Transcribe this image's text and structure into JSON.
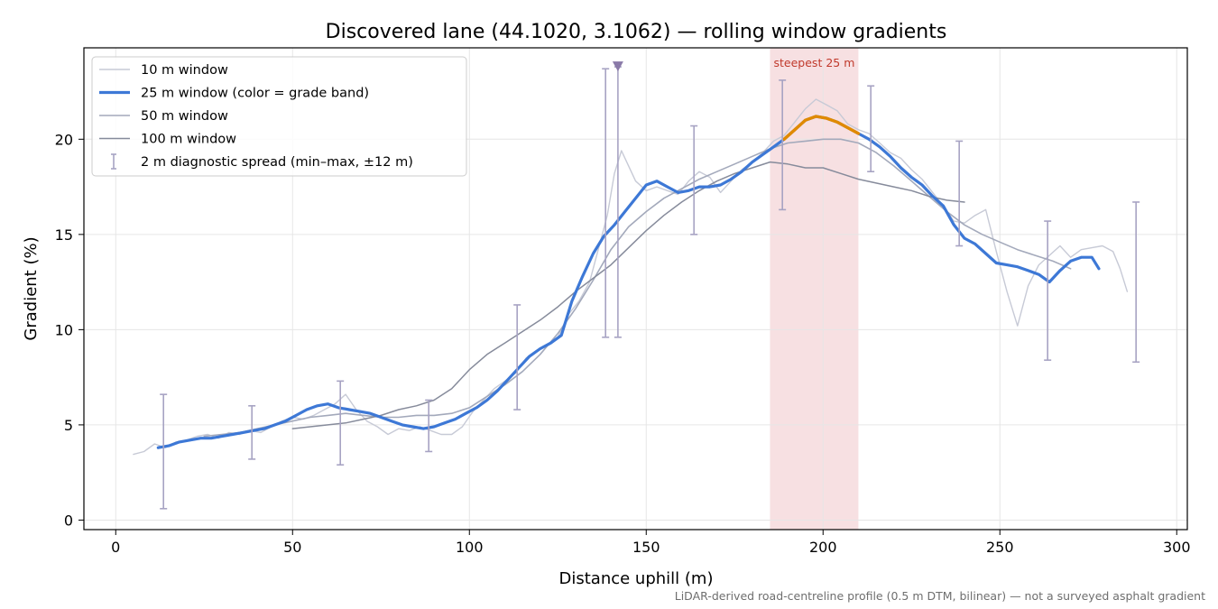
{
  "chart_data": {
    "type": "line",
    "title": "Discovered lane (44.1020, 3.1062) — rolling window gradients",
    "xlabel": "Distance uphill (m)",
    "ylabel": "Gradient (%)",
    "xlim": [
      -9,
      303
    ],
    "ylim": [
      -0.5,
      24.8
    ],
    "xticks": [
      0,
      50,
      100,
      150,
      200,
      250,
      300
    ],
    "yticks": [
      0,
      5,
      10,
      15,
      20
    ],
    "grid": true,
    "legend_position": "upper left",
    "footnote": "LiDAR-derived road-centreline profile (0.5 m DTM, bilinear) — not a surveyed asphalt gradient",
    "highlight": {
      "label": "steepest 25 m",
      "x_range": [
        185,
        210
      ],
      "color": "#e8a5ab"
    },
    "marker": {
      "x": 142,
      "y": 23.8,
      "shape": "down-triangle",
      "color": "#8a7aa8"
    },
    "series": [
      {
        "name": "10 m window",
        "color": "#c7cad6",
        "x": [
          5,
          8,
          11,
          14,
          17,
          20,
          23,
          26,
          29,
          32,
          35,
          38,
          41,
          44,
          47,
          50,
          53,
          56,
          59,
          62,
          65,
          68,
          71,
          74,
          77,
          80,
          83,
          86,
          89,
          92,
          95,
          98,
          101,
          104,
          107,
          110,
          113,
          116,
          119,
          122,
          125,
          128,
          131,
          134,
          137,
          139,
          141,
          143,
          145,
          147,
          150,
          153,
          156,
          159,
          162,
          165,
          168,
          171,
          174,
          177,
          180,
          183,
          186,
          189,
          192,
          195,
          198,
          201,
          204,
          207,
          210,
          213,
          216,
          219,
          222,
          225,
          228,
          231,
          234,
          237,
          240,
          243,
          246,
          249,
          252,
          255,
          258,
          261,
          264,
          267,
          270,
          273,
          276,
          279,
          282,
          284,
          286
        ],
        "y": [
          3.45,
          3.6,
          4.0,
          3.8,
          4.1,
          4.2,
          4.4,
          4.5,
          4.3,
          4.6,
          4.5,
          4.7,
          4.6,
          4.9,
          5.2,
          5.4,
          5.3,
          5.5,
          5.8,
          6.1,
          6.6,
          5.8,
          5.2,
          4.9,
          4.5,
          4.8,
          4.7,
          4.9,
          4.7,
          4.5,
          4.5,
          4.9,
          5.7,
          6.3,
          6.9,
          7.3,
          7.7,
          8.5,
          8.9,
          9.2,
          9.6,
          10.8,
          11.5,
          12.5,
          14.6,
          16.0,
          18.2,
          19.4,
          18.6,
          17.8,
          17.3,
          17.5,
          17.3,
          17.1,
          17.8,
          18.3,
          18.0,
          17.2,
          17.8,
          18.4,
          18.8,
          19.3,
          19.9,
          20.2,
          20.9,
          21.6,
          22.1,
          21.8,
          21.5,
          20.8,
          20.5,
          20.3,
          19.8,
          19.3,
          19.0,
          18.4,
          17.9,
          17.2,
          16.5,
          15.7,
          15.6,
          16.0,
          16.3,
          14.1,
          12.0,
          10.2,
          12.3,
          13.4,
          13.9,
          14.4,
          13.8,
          14.2,
          14.3,
          14.4,
          14.1,
          13.2,
          12.0
        ]
      },
      {
        "name": "25 m window (color = grade band)",
        "color": "#3d78d6",
        "band_color": "#e08a00",
        "band_x_range": [
          189,
          211
        ],
        "x": [
          12,
          15,
          18,
          21,
          24,
          27,
          30,
          33,
          36,
          39,
          42,
          45,
          48,
          51,
          54,
          57,
          60,
          63,
          66,
          69,
          72,
          75,
          78,
          81,
          84,
          87,
          90,
          93,
          96,
          99,
          102,
          105,
          108,
          111,
          114,
          117,
          120,
          123,
          126,
          129,
          132,
          135,
          138,
          141,
          144,
          147,
          150,
          153,
          156,
          159,
          162,
          165,
          168,
          171,
          174,
          177,
          180,
          183,
          186,
          189,
          192,
          195,
          198,
          201,
          204,
          207,
          210,
          213,
          216,
          219,
          222,
          225,
          228,
          231,
          234,
          237,
          240,
          243,
          246,
          249,
          252,
          255,
          258,
          261,
          264,
          267,
          270,
          273,
          276,
          278
        ],
        "y": [
          3.8,
          3.9,
          4.1,
          4.2,
          4.3,
          4.3,
          4.4,
          4.5,
          4.6,
          4.7,
          4.8,
          5.0,
          5.2,
          5.5,
          5.8,
          6.0,
          6.1,
          5.9,
          5.8,
          5.7,
          5.6,
          5.4,
          5.2,
          5.0,
          4.9,
          4.8,
          4.9,
          5.1,
          5.3,
          5.6,
          5.9,
          6.3,
          6.8,
          7.4,
          8.0,
          8.6,
          9.0,
          9.3,
          9.7,
          11.5,
          12.8,
          14.0,
          14.9,
          15.5,
          16.2,
          16.9,
          17.6,
          17.8,
          17.5,
          17.2,
          17.3,
          17.5,
          17.5,
          17.6,
          17.9,
          18.3,
          18.8,
          19.2,
          19.6,
          20.0,
          20.5,
          21.0,
          21.2,
          21.1,
          20.9,
          20.6,
          20.3,
          20.0,
          19.6,
          19.1,
          18.5,
          18.0,
          17.6,
          17.0,
          16.5,
          15.5,
          14.8,
          14.5,
          14.0,
          13.5,
          13.4,
          13.3,
          13.1,
          12.9,
          12.5,
          13.1,
          13.6,
          13.8,
          13.8,
          13.2
        ]
      },
      {
        "name": "50 m window",
        "color": "#a3a9bb",
        "x": [
          25,
          30,
          35,
          40,
          45,
          50,
          55,
          60,
          65,
          70,
          75,
          80,
          85,
          90,
          95,
          100,
          105,
          110,
          115,
          120,
          125,
          130,
          135,
          140,
          145,
          150,
          155,
          160,
          165,
          170,
          175,
          180,
          185,
          190,
          195,
          200,
          205,
          210,
          215,
          220,
          225,
          230,
          235,
          240,
          245,
          250,
          255,
          260,
          265,
          270
        ],
        "y": [
          4.4,
          4.5,
          4.6,
          4.8,
          5.0,
          5.2,
          5.4,
          5.5,
          5.6,
          5.5,
          5.4,
          5.4,
          5.5,
          5.5,
          5.6,
          5.9,
          6.5,
          7.1,
          7.8,
          8.7,
          9.8,
          11.1,
          12.6,
          14.2,
          15.4,
          16.2,
          16.9,
          17.4,
          17.9,
          18.3,
          18.7,
          19.1,
          19.5,
          19.8,
          19.9,
          20.0,
          20.0,
          19.8,
          19.3,
          18.6,
          17.8,
          17.0,
          16.2,
          15.5,
          15.0,
          14.6,
          14.2,
          13.9,
          13.6,
          13.2
        ]
      },
      {
        "name": "100 m window",
        "color": "#868b9b",
        "x": [
          50,
          55,
          60,
          65,
          70,
          75,
          80,
          85,
          90,
          95,
          100,
          105,
          110,
          115,
          120,
          125,
          130,
          135,
          140,
          145,
          150,
          155,
          160,
          165,
          170,
          175,
          180,
          185,
          190,
          195,
          200,
          205,
          210,
          215,
          220,
          225,
          230,
          235,
          240
        ],
        "y": [
          4.8,
          4.9,
          5.0,
          5.1,
          5.3,
          5.5,
          5.8,
          6.0,
          6.3,
          6.9,
          7.9,
          8.7,
          9.3,
          9.9,
          10.5,
          11.2,
          12.0,
          12.7,
          13.4,
          14.3,
          15.2,
          16.0,
          16.7,
          17.3,
          17.8,
          18.2,
          18.5,
          18.8,
          18.7,
          18.5,
          18.5,
          18.2,
          17.9,
          17.7,
          17.5,
          17.3,
          17.0,
          16.8,
          16.7
        ]
      }
    ],
    "errorbars": {
      "name": "2 m diagnostic spread (min–max, ±12 m)",
      "color": "#a7a3c3",
      "x": [
        13.5,
        38.5,
        63.5,
        88.5,
        113.5,
        138.5,
        142,
        163.5,
        188.5,
        213.5,
        238.5,
        263.5,
        288.5
      ],
      "low": [
        0.6,
        3.2,
        2.9,
        3.6,
        5.8,
        9.6,
        9.6,
        15.0,
        16.3,
        18.3,
        14.4,
        8.4,
        8.3
      ],
      "high": [
        6.6,
        6.0,
        7.3,
        6.3,
        11.3,
        23.7,
        23.8,
        20.7,
        23.1,
        22.8,
        19.9,
        15.7,
        16.7
      ]
    }
  }
}
